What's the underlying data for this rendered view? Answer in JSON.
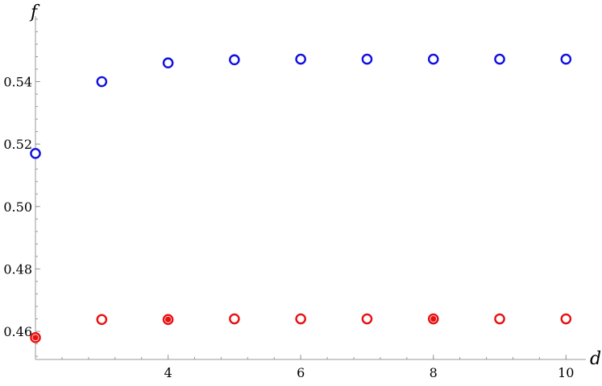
{
  "chart_data": {
    "type": "scatter",
    "xlabel": "d",
    "ylabel": "f",
    "xlim": [
      2,
      10.3
    ],
    "ylim": [
      0.451,
      0.561
    ],
    "x_ticks": [
      4,
      6,
      8,
      10
    ],
    "x_tick_labels": [
      "4",
      "6",
      "8",
      "10"
    ],
    "x_minor_step": 0.4,
    "y_ticks": [
      0.46,
      0.48,
      0.5,
      0.52,
      0.54
    ],
    "y_tick_labels": [
      "0.46",
      "0.48",
      "0.50",
      "0.52",
      "0.54"
    ],
    "y_minor_step": 0.004,
    "grid": false,
    "series": [
      {
        "color": "#1010e0",
        "marker": "open-circle",
        "points": [
          {
            "x": 2,
            "y": 0.517
          },
          {
            "x": 3,
            "y": 0.54
          },
          {
            "x": 4,
            "y": 0.546
          },
          {
            "x": 5,
            "y": 0.547
          },
          {
            "x": 6,
            "y": 0.5472
          },
          {
            "x": 7,
            "y": 0.5472
          },
          {
            "x": 8,
            "y": 0.5472
          },
          {
            "x": 9,
            "y": 0.5472
          },
          {
            "x": 10,
            "y": 0.5472
          }
        ]
      },
      {
        "color": "#e81010",
        "marker": "open-circle",
        "points": [
          {
            "x": 2,
            "y": 0.458,
            "filled": true
          },
          {
            "x": 3,
            "y": 0.4638
          },
          {
            "x": 4,
            "y": 0.4638,
            "filled": true
          },
          {
            "x": 5,
            "y": 0.464
          },
          {
            "x": 6,
            "y": 0.464
          },
          {
            "x": 7,
            "y": 0.464
          },
          {
            "x": 8,
            "y": 0.464,
            "filled": true
          },
          {
            "x": 9,
            "y": 0.464
          },
          {
            "x": 10,
            "y": 0.464
          }
        ]
      }
    ]
  }
}
